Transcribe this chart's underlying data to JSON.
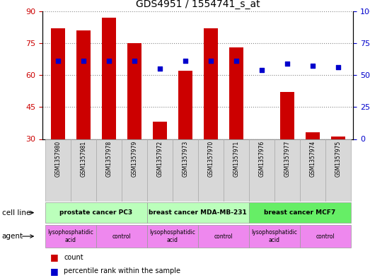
{
  "title": "GDS4951 / 1554741_s_at",
  "samples": [
    "GSM1357980",
    "GSM1357981",
    "GSM1357978",
    "GSM1357979",
    "GSM1357972",
    "GSM1357973",
    "GSM1357970",
    "GSM1357971",
    "GSM1357976",
    "GSM1357977",
    "GSM1357974",
    "GSM1357975"
  ],
  "counts": [
    82,
    81,
    87,
    75,
    38,
    62,
    82,
    73,
    30,
    52,
    33,
    31
  ],
  "percentiles": [
    61,
    61,
    61,
    61,
    55,
    61,
    61,
    61,
    54,
    59,
    57,
    56
  ],
  "ylim_left": [
    30,
    90
  ],
  "ylim_right": [
    0,
    100
  ],
  "yticks_left": [
    30,
    45,
    60,
    75,
    90
  ],
  "yticks_right": [
    0,
    25,
    50,
    75,
    100
  ],
  "bar_color": "#cc0000",
  "dot_color": "#0000cc",
  "cell_line_groups": [
    {
      "label": "prostate cancer PC3",
      "start": 0,
      "end": 4
    },
    {
      "label": "breast cancer MDA-MB-231",
      "start": 4,
      "end": 8
    },
    {
      "label": "breast cancer MCF7",
      "start": 8,
      "end": 12
    }
  ],
  "cell_line_colors": [
    "#bbffbb",
    "#bbffbb",
    "#66ee66"
  ],
  "agent_groups": [
    {
      "label": "lysophosphatidic\nacid",
      "start": 0,
      "end": 2
    },
    {
      "label": "control",
      "start": 2,
      "end": 4
    },
    {
      "label": "lysophosphatidic\nacid",
      "start": 4,
      "end": 6
    },
    {
      "label": "control",
      "start": 6,
      "end": 8
    },
    {
      "label": "lysophosphatidic\nacid",
      "start": 8,
      "end": 10
    },
    {
      "label": "control",
      "start": 10,
      "end": 12
    }
  ],
  "agent_color": "#ee88ee",
  "grid_color": "#888888",
  "tick_label_color_left": "#cc0000",
  "tick_label_color_right": "#0000cc",
  "bar_bottom": 30,
  "bar_width": 0.55,
  "sample_box_color": "#d8d8d8",
  "legend_bar_color": "#cc0000",
  "legend_dot_color": "#0000cc"
}
